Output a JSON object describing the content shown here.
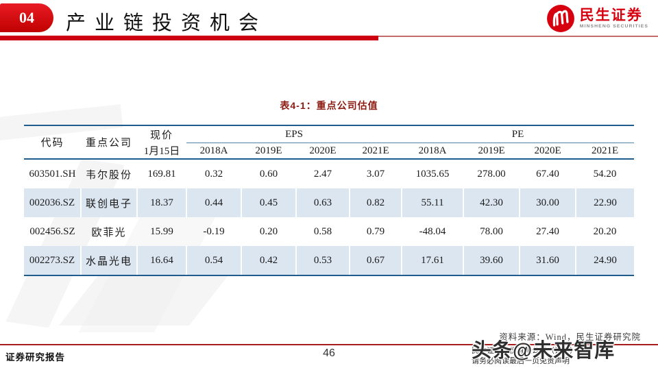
{
  "header": {
    "section_number": "04",
    "title": "产业链投资机会",
    "logo": {
      "cn": "民生证券",
      "en": "MINSHENG SECURITIES"
    }
  },
  "table": {
    "caption": "表4-1：重点公司估值",
    "col_headers": {
      "code": "代码",
      "company": "重点公司",
      "price_line1": "现价",
      "price_line2": "1月15日",
      "eps_group": "EPS",
      "pe_group": "PE",
      "eps_years": [
        "2018A",
        "2019E",
        "2020E",
        "2021E"
      ],
      "pe_years": [
        "2018A",
        "2019E",
        "2020E",
        "2021E"
      ]
    },
    "rows": [
      [
        "603501.SH",
        "韦尔股份",
        "169.81",
        "0.32",
        "0.60",
        "2.47",
        "3.07",
        "1035.65",
        "278.00",
        "67.40",
        "54.20"
      ],
      [
        "002036.SZ",
        "联创电子",
        "18.37",
        "0.44",
        "0.45",
        "0.63",
        "0.82",
        "55.11",
        "42.30",
        "30.00",
        "22.90"
      ],
      [
        "002456.SZ",
        "欧菲光",
        "15.99",
        "-0.19",
        "0.20",
        "0.58",
        "0.79",
        "-48.04",
        "78.00",
        "27.40",
        "20.20"
      ],
      [
        "002273.SZ",
        "水晶光电",
        "16.64",
        "0.54",
        "0.42",
        "0.53",
        "0.67",
        "17.61",
        "39.60",
        "31.60",
        "24.90"
      ]
    ],
    "source": "资料来源：Wind，民生证券研究院"
  },
  "footer": {
    "left": "证券研究报告",
    "page_number": "46",
    "right_line1": "民生证券股份有限公司（证…）",
    "right_line2": "请务必阅读最后一页免责声明"
  },
  "watermark_text": "头条@未来智库",
  "colors": {
    "brand_red": "#d7000f",
    "rule_red": "#cc0011",
    "table_border_blue": "#1f5c8c",
    "band_blue": "#dce6f1",
    "caption_red": "#8b1a10"
  }
}
